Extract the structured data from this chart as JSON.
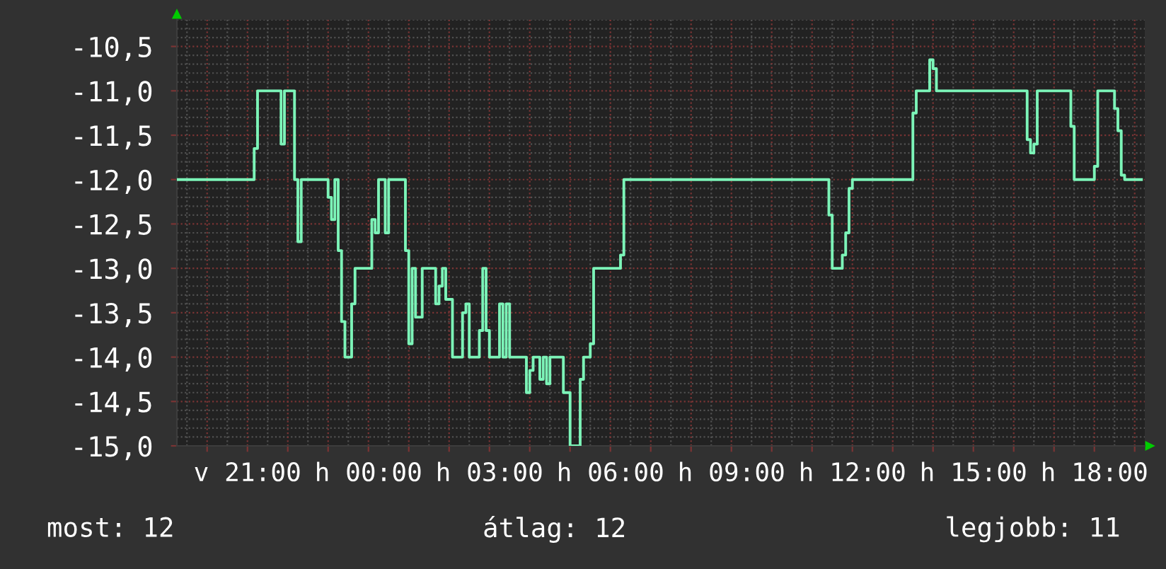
{
  "chart_data": {
    "type": "step",
    "categories": [
      null,
      null,
      null,
      null,
      null,
      null,
      null,
      null,
      null,
      null,
      null,
      null,
      null,
      null,
      null,
      null,
      null,
      null,
      null,
      null,
      null,
      "v 21:00",
      null,
      null,
      null,
      null,
      null,
      null,
      null,
      null,
      null,
      null,
      null,
      null,
      null,
      null,
      null,
      null,
      null,
      null,
      null,
      null,
      null,
      null,
      null,
      null,
      null,
      null,
      null,
      null,
      null,
      null,
      null,
      null,
      null,
      null,
      null,
      "h 00:00",
      null,
      null,
      null,
      null,
      null,
      null,
      null,
      null,
      null,
      null,
      null,
      null,
      null,
      null,
      null,
      null,
      null,
      null,
      null,
      null,
      null,
      null,
      null,
      null,
      null,
      null,
      null,
      null,
      null,
      null,
      null,
      null,
      null,
      null,
      null,
      "h 03:00",
      null,
      null,
      null,
      null,
      null,
      null,
      null,
      null,
      null,
      null,
      null,
      null,
      null,
      null,
      null,
      null,
      null,
      null,
      null,
      null,
      null,
      null,
      null,
      null,
      null,
      null,
      null,
      null,
      null,
      null,
      null,
      null,
      null,
      null,
      null,
      "h 06:00",
      null,
      null,
      null,
      null,
      null,
      null,
      null,
      null,
      null,
      null,
      null,
      null,
      null,
      null,
      null,
      null,
      null,
      null,
      null,
      null,
      null,
      null,
      null,
      null,
      null,
      null,
      null,
      null,
      null,
      null,
      null,
      null,
      null,
      null,
      null,
      "h 09:00",
      null,
      null,
      null,
      null,
      null,
      null,
      null,
      null,
      null,
      null,
      null,
      null,
      null,
      null,
      null,
      null,
      null,
      null,
      null,
      null,
      null,
      null,
      null,
      null,
      null,
      null,
      null,
      null,
      null,
      null,
      null,
      null,
      null,
      null,
      null,
      "h 12:00",
      null,
      null,
      null,
      null,
      null,
      null,
      null,
      null,
      null,
      null,
      null,
      null,
      null,
      null,
      null,
      null,
      null,
      null,
      null,
      null,
      null,
      null,
      null,
      null,
      null,
      null,
      null,
      null,
      null,
      null,
      null,
      null,
      null,
      null,
      null,
      "h 15:00",
      null,
      null,
      null,
      null,
      null,
      null,
      null,
      null,
      null,
      null,
      null,
      null,
      null,
      null,
      null,
      null,
      null,
      null,
      null,
      null,
      null,
      null,
      null,
      null,
      null,
      null,
      null,
      null,
      null,
      null,
      null,
      null,
      null,
      null,
      null,
      "h 18:00",
      null,
      null,
      null,
      null,
      null,
      null,
      null,
      null,
      null,
      null,
      null,
      null,
      null,
      null
    ],
    "series": [
      {
        "color": "#7cf4b8",
        "values": [
          -12,
          -12,
          -12,
          -12,
          -12,
          -12,
          -12,
          -12,
          -12,
          -12,
          -12,
          -12,
          -12,
          -12,
          -12,
          -12,
          -12,
          -12,
          -12,
          -12,
          -12,
          -12,
          -12,
          -11.65,
          -11,
          -11,
          -11,
          -11,
          -11,
          -11,
          -11,
          -11.6,
          -11,
          -11,
          -11,
          -12,
          -12.7,
          -12,
          -12,
          -12,
          -12,
          -12,
          -12,
          -12,
          -12,
          -12.2,
          -12.45,
          -12,
          -12.8,
          -13.6,
          -14,
          -14,
          -13.4,
          -13,
          -13,
          -13,
          -13,
          -13,
          -12.45,
          -12.6,
          -12,
          -12,
          -12.6,
          -12,
          -12,
          -12,
          -12,
          -12,
          -12.8,
          -13.85,
          -13,
          -13.55,
          -13.55,
          -13,
          -13,
          -13,
          -13,
          -13.4,
          -13.2,
          -13,
          -13.35,
          -13.35,
          -14,
          -14,
          -14,
          -13.5,
          -13.4,
          -14,
          -14,
          -14,
          -13.7,
          -13,
          -13.7,
          -14,
          -14,
          -14,
          -13.4,
          -14,
          -13.4,
          -14,
          -14,
          -14,
          -14,
          -14,
          -14.4,
          -14.15,
          -14,
          -14,
          -14.25,
          -14,
          -14.3,
          -14,
          -14,
          -14,
          -14,
          -14.4,
          -14.4,
          -15,
          -15,
          -15,
          -14.25,
          -14,
          -14,
          -13.85,
          -13,
          -13,
          -13,
          -13,
          -13,
          -13,
          -13,
          -13,
          -12.85,
          -12,
          -12,
          -12,
          -12,
          -12,
          -12,
          -12,
          -12,
          -12,
          -12,
          -12,
          -12,
          -12,
          -12,
          -12,
          -12,
          -12,
          -12,
          -12,
          -12,
          -12,
          -12,
          -12,
          -12,
          -12,
          -12,
          -12,
          -12,
          -12,
          -12,
          -12,
          -12,
          -12,
          -12,
          -12,
          -12,
          -12,
          -12,
          -12,
          -12,
          -12,
          -12,
          -12,
          -12,
          -12,
          -12,
          -12,
          -12,
          -12,
          -12,
          -12,
          -12,
          -12,
          -12,
          -12,
          -12,
          -12,
          -12,
          -12,
          -12,
          -12,
          -12.4,
          -13,
          -13,
          -13,
          -12.85,
          -12.6,
          -12.1,
          -12,
          -12,
          -12,
          -12,
          -12,
          -12,
          -12,
          -12,
          -12,
          -12,
          -12,
          -12,
          -12,
          -12,
          -12,
          -12,
          -12,
          -12,
          -11.25,
          -11,
          -11,
          -11,
          -11,
          -10.65,
          -10.75,
          -11,
          -11,
          -11,
          -11,
          -11,
          -11,
          -11,
          -11,
          -11,
          -11,
          -11,
          -11,
          -11,
          -11,
          -11,
          -11,
          -11,
          -11,
          -11,
          -11,
          -11,
          -11,
          -11,
          -11,
          -11,
          -11,
          -11,
          -11.55,
          -11.7,
          -11.6,
          -11,
          -11,
          -11,
          -11,
          -11,
          -11,
          -11,
          -11,
          -11,
          -11,
          -11.4,
          -12,
          -12,
          -12,
          -12,
          -12,
          -12,
          -11.85,
          -11,
          -11,
          -11,
          -11,
          -11,
          -11.2,
          -11.45,
          -11.95,
          -12,
          -12,
          -12,
          -12,
          -12,
          -12
        ]
      }
    ],
    "ylim": [
      -15,
      -10.2
    ],
    "yticks": [
      {
        "value": -15,
        "label": "-15,0"
      },
      {
        "value": -14.5,
        "label": "-14,5"
      },
      {
        "value": -14,
        "label": "-14,0"
      },
      {
        "value": -13.5,
        "label": "-13,5"
      },
      {
        "value": -13,
        "label": "-13,0"
      },
      {
        "value": -12.5,
        "label": "-12,5"
      },
      {
        "value": -12,
        "label": "-12,0"
      },
      {
        "value": -11.5,
        "label": "-11,5"
      },
      {
        "value": -11,
        "label": "-11,0"
      },
      {
        "value": -10.5,
        "label": "-10,5"
      }
    ],
    "grid": true,
    "annotations": [
      "most: 12",
      "átlag: 12",
      "legjobb: 11"
    ]
  }
}
